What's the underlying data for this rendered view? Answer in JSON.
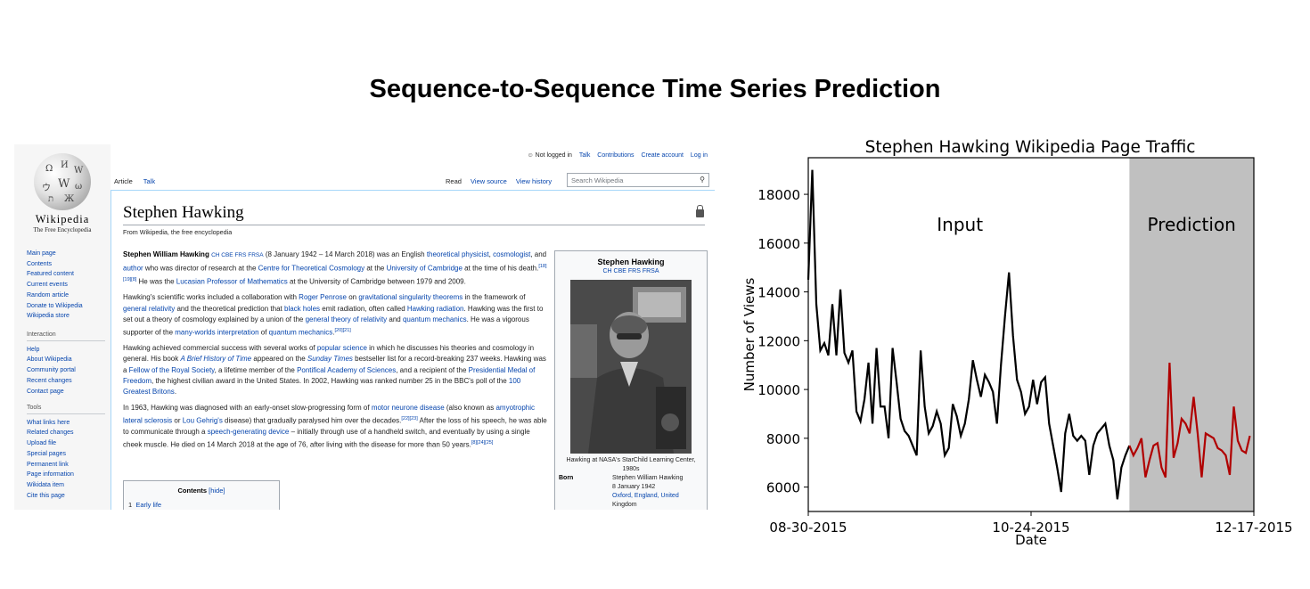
{
  "title": "Sequence-to-Sequence Time Series Prediction",
  "wiki": {
    "logo": {
      "wordmark": "Wikipedia",
      "tagline": "The Free Encyclopedia"
    },
    "nav_main": [
      "Main page",
      "Contents",
      "Featured content",
      "Current events",
      "Random article",
      "Donate to Wikipedia",
      "Wikipedia store"
    ],
    "nav_interaction_heading": "Interaction",
    "nav_interaction": [
      "Help",
      "About Wikipedia",
      "Community portal",
      "Recent changes",
      "Contact page"
    ],
    "nav_tools_heading": "Tools",
    "nav_tools": [
      "What links here",
      "Related changes",
      "Upload file",
      "Special pages",
      "Permanent link",
      "Page information",
      "Wikidata item",
      "Cite this page"
    ],
    "personal": {
      "status": "Not logged in",
      "talk": "Talk",
      "contributions": "Contributions",
      "create": "Create account",
      "login": "Log in"
    },
    "tabs": {
      "article": "Article",
      "talk": "Talk",
      "read": "Read",
      "view_source": "View source",
      "view_history": "View history"
    },
    "search_placeholder": "Search Wikipedia",
    "page_title": "Stephen Hawking",
    "subtitle": "From Wikipedia, the free encyclopedia",
    "toc": {
      "title": "Contents",
      "hide": "[hide]",
      "item1_num": "1",
      "item1": "Early life"
    },
    "infobox": {
      "name": "Stephen Hawking",
      "honours": "CH CBE FRS FRSA",
      "caption": "Hawking at NASA's StarChild Learning Center, 1980s",
      "born_label": "Born",
      "born_value_1": "Stephen William Hawking",
      "born_value_2": "8 January 1942",
      "born_value_3": "Oxford, England, United",
      "born_value_4": "Kingdom"
    }
  },
  "chart_data": {
    "type": "line",
    "title": "Stephen Hawking Wikipedia Page Traffic",
    "xlabel": "Date",
    "ylabel": "Number of Views",
    "x_tick_labels": [
      "08-30-2015",
      "10-24-2015",
      "12-17-2015"
    ],
    "y_ticks": [
      6000,
      8000,
      10000,
      12000,
      14000,
      16000,
      18000
    ],
    "ylim": [
      5000,
      19500
    ],
    "region_labels": {
      "input": "Input",
      "prediction": "Prediction"
    },
    "prediction_start_index": 80,
    "colors": {
      "input": "#000000",
      "prediction": "#b00000",
      "prediction_bg": "#c0c0c0"
    },
    "series": [
      {
        "name": "Input",
        "values": [
          14500,
          19000,
          13500,
          11600,
          11900,
          11400,
          13500,
          11400,
          14100,
          11500,
          11100,
          11600,
          9100,
          8700,
          9600,
          11100,
          8600,
          11700,
          9300,
          9300,
          8000,
          11700,
          10300,
          8800,
          8300,
          8100,
          7700,
          7300,
          11600,
          9300,
          8200,
          8500,
          9100,
          8600,
          7300,
          7600,
          9400,
          8900,
          8100,
          8600,
          9600,
          11200,
          10400,
          9700,
          10600,
          10300,
          9900,
          8600,
          11000,
          13000,
          14800,
          12200,
          10400,
          9900,
          9000,
          9300,
          10400,
          9400,
          10300,
          10500,
          8600,
          7700,
          6800,
          5800,
          8200,
          9000,
          8100,
          7900,
          8100,
          7900,
          6500,
          7700,
          8200,
          8400,
          8600,
          7700,
          7100,
          5500,
          6800,
          7300,
          7700
        ]
      },
      {
        "name": "Prediction",
        "values": [
          7700,
          7300,
          7600,
          8000,
          6400,
          7100,
          7700,
          7800,
          6800,
          6400,
          11100,
          7200,
          7800,
          8800,
          8600,
          8200,
          9700,
          8200,
          6400,
          8200,
          8100,
          8000,
          7600,
          7500,
          7300,
          6500,
          9300,
          7900,
          7500,
          7400,
          8100
        ]
      }
    ]
  }
}
